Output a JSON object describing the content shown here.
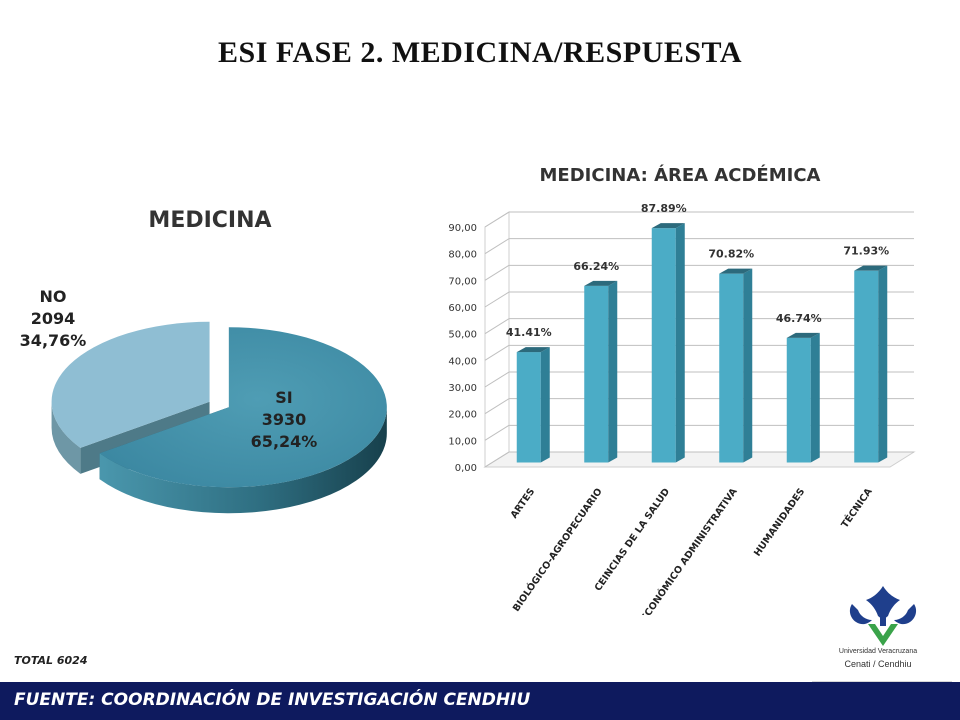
{
  "slide": {
    "title": "ESI FASE 2.  MEDICINA/RESPUESTA",
    "total": "TOTAL  6024",
    "footer": "FUENTE:   COORDINACIÓN DE INVESTIGACIÓN CENDHIU",
    "logo_line1": "Universidad Veracruzana",
    "logo_line2": "Cenati / Cendhiu"
  },
  "chart_data": [
    {
      "type": "pie",
      "title": "MEDICINA",
      "slices": [
        {
          "name": "SI",
          "value": 3930,
          "percent_label": "65,24%",
          "color": "#3f8fa8"
        },
        {
          "name": "NO",
          "value": 2094,
          "percent_label": "34,76%",
          "color": "#8fbed3"
        }
      ]
    },
    {
      "type": "bar",
      "title": "MEDICINA: ÁREA ACDÉMICA",
      "categories": [
        "ARTES",
        "BIOLÓGICO-AGROPECUARIO",
        "CEINCIAS DE LA SALUD",
        "ECONÓMICO ADMINISTRATIVA",
        "HUMANIDADES",
        "TÉCNICA"
      ],
      "values": [
        41.41,
        66.24,
        87.89,
        70.82,
        46.74,
        71.93
      ],
      "data_labels": [
        "41.41%",
        "66.24%",
        "87.89%",
        "70.82%",
        "46.74%",
        "71.93%"
      ],
      "ylim": [
        0,
        90
      ],
      "yticks": [
        "0,00",
        "10,00",
        "20,00",
        "30,00",
        "40,00",
        "50,00",
        "60,00",
        "70,00",
        "80,00",
        "90,00"
      ],
      "grid": true,
      "color": "#4bacc6"
    }
  ]
}
